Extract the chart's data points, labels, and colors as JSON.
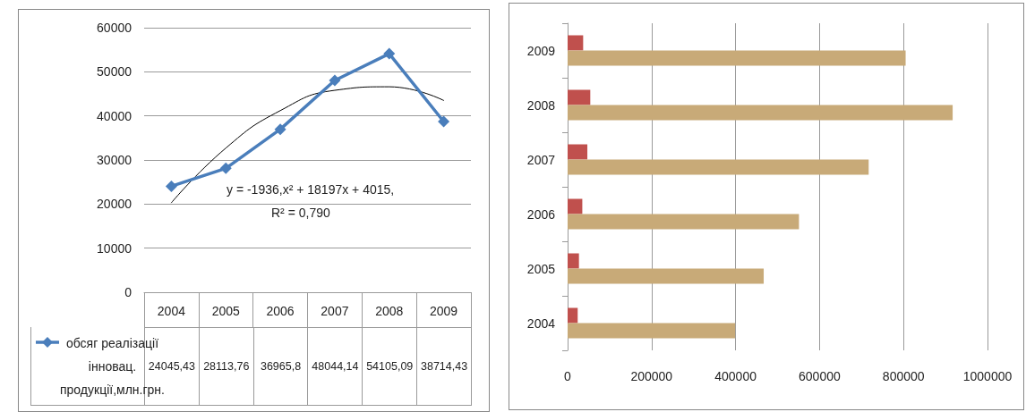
{
  "chart_data": [
    {
      "type": "line",
      "categories": [
        "2004",
        "2005",
        "2006",
        "2007",
        "2008",
        "2009"
      ],
      "series": [
        {
          "name": "обсяг реалізації інновац. продукції,млн.грн.",
          "color": "#4a7ebb",
          "values": [
            24045.43,
            28113.76,
            36965.8,
            48044.14,
            54105.09,
            38714.43
          ],
          "marker": "diamond",
          "value_labels": [
            "24045,43",
            "28113,76",
            "36965,8",
            "48044,14",
            "54105,09",
            "38714,43"
          ]
        },
        {
          "type": "line",
          "color": "#000000",
          "values": [
            20300,
            32700,
            41200,
            45800,
            46600,
            43500
          ],
          "marker": "none"
        }
      ],
      "ylim": [
        0,
        60000
      ],
      "yticks": [
        0,
        10000,
        20000,
        30000,
        40000,
        50000,
        60000
      ],
      "grid": "y",
      "legend": "bottom",
      "line_style": "solid",
      "annotations": [
        "y = -1936,x² + 18197x + 4015,",
        "R² = 0,790"
      ]
    },
    {
      "type": "bar",
      "orientation": "horizontal",
      "categories": [
        "2009",
        "2008",
        "2007",
        "2006",
        "2005",
        "2004"
      ],
      "series": [
        {
          "color": "#c0504d",
          "values": [
            37000,
            54000,
            47000,
            35000,
            27000,
            24000
          ]
        },
        {
          "color": "#c8aa78",
          "values": [
            805000,
            917000,
            717000,
            551000,
            467000,
            399000
          ]
        }
      ],
      "xlim": [
        0,
        1000000
      ],
      "xticks": [
        0,
        200000,
        400000,
        600000,
        800000,
        1000000
      ],
      "grid": "x",
      "legend": false
    }
  ]
}
